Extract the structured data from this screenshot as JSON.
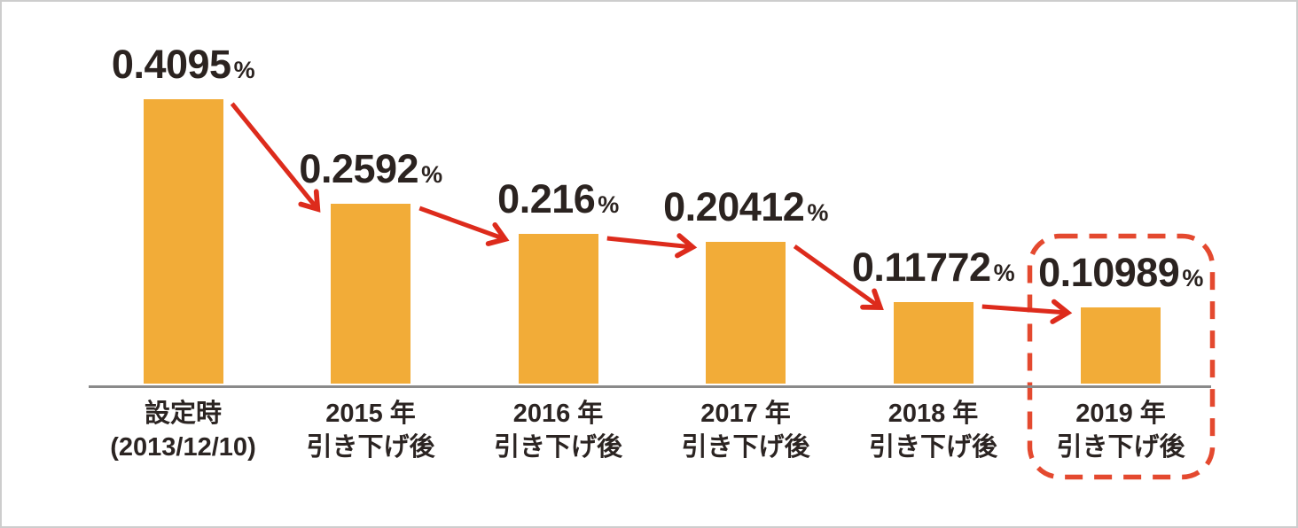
{
  "chart_data": {
    "type": "bar",
    "title": "",
    "unit": "%",
    "categories": [
      {
        "line1": "設定時",
        "line2": "(2013/12/10)"
      },
      {
        "line1": "2015 年",
        "line2": "引き下げ後"
      },
      {
        "line1": "2016 年",
        "line2": "引き下げ後"
      },
      {
        "line1": "2017 年",
        "line2": "引き下げ後"
      },
      {
        "line1": "2018 年",
        "line2": "引き下げ後"
      },
      {
        "line1": "2019 年",
        "line2": "引き下げ後"
      }
    ],
    "values": [
      0.4095,
      0.2592,
      0.216,
      0.20412,
      0.11772,
      0.10989
    ],
    "value_labels": [
      "0.4095",
      "0.2592",
      "0.216",
      "0.20412",
      "0.11772",
      "0.10989"
    ],
    "highlight": {
      "index": 5,
      "style": "dashed-rounded-box"
    },
    "legend": "none",
    "grid": "off",
    "colors": {
      "bar": "#F2AC38",
      "arrow": "#DD2B1C",
      "highlight_box": "#E4492F",
      "axis": "#8A8A8A",
      "text": "#2B2320"
    }
  }
}
